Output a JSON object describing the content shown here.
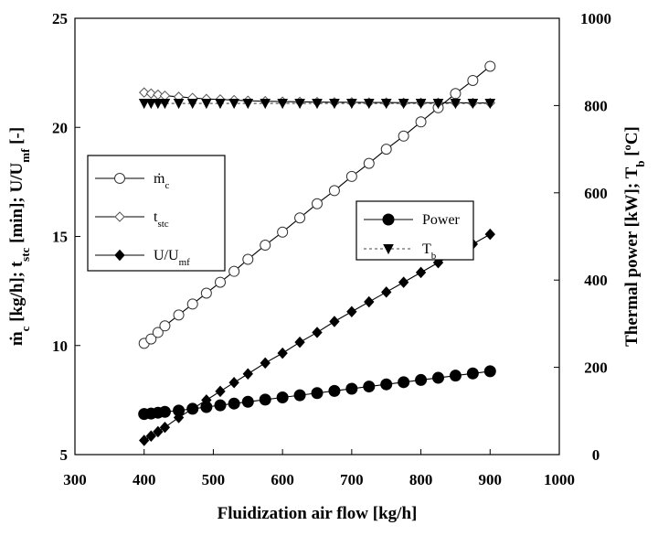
{
  "chart_data": {
    "type": "line",
    "x_axis": {
      "label": "Fluidization air flow  [kg/h]",
      "range": [
        300,
        1000
      ],
      "ticks": [
        300,
        400,
        500,
        600,
        700,
        800,
        900,
        1000
      ]
    },
    "y_left": {
      "label_parts": [
        "ṁ",
        "c",
        " [kg/h]; t",
        "stc",
        " [min];  U/U",
        "mf",
        " [-]"
      ],
      "range": [
        5,
        25
      ],
      "ticks": [
        5,
        10,
        15,
        20,
        25
      ]
    },
    "y_right": {
      "label_parts": [
        "Thermal power [kW]; T",
        "b",
        " [ºC]"
      ],
      "range": [
        0,
        1000
      ],
      "ticks": [
        0,
        200,
        400,
        600,
        800,
        1000
      ]
    },
    "grid": false,
    "legends": [
      {
        "placement": "left-middle",
        "entries": [
          {
            "series": "mc",
            "text": "ṁ",
            "sub": "c"
          },
          {
            "series": "tstc",
            "text": "t",
            "sub": "stc"
          },
          {
            "series": "uumf",
            "text": "U/U",
            "sub": "mf"
          }
        ]
      },
      {
        "placement": "right-middle",
        "entries": [
          {
            "series": "power",
            "text": "Power",
            "sub": ""
          },
          {
            "series": "tb",
            "text": "T",
            "sub": "b"
          }
        ]
      }
    ],
    "series": [
      {
        "id": "mc",
        "axis": "left",
        "marker": "open-circle",
        "line": "solid",
        "x": [
          400,
          410,
          420,
          430,
          450,
          470,
          490,
          510,
          530,
          550,
          575,
          600,
          625,
          650,
          675,
          700,
          725,
          750,
          775,
          800,
          825,
          850,
          875,
          900
        ],
        "values": [
          10.1,
          10.3,
          10.6,
          10.9,
          11.4,
          11.9,
          12.4,
          12.9,
          13.4,
          13.95,
          14.6,
          15.2,
          15.85,
          16.5,
          17.1,
          17.75,
          18.35,
          19.0,
          19.6,
          20.25,
          20.9,
          21.55,
          22.15,
          22.8
        ]
      },
      {
        "id": "tstc",
        "axis": "left",
        "marker": "open-diamond",
        "line": "solid",
        "x": [
          400,
          410,
          420,
          430,
          450,
          470,
          490,
          510,
          530,
          550,
          575,
          600,
          625,
          650,
          675,
          700,
          725,
          750,
          775,
          800,
          825,
          850,
          875,
          900
        ],
        "values": [
          21.6,
          21.55,
          21.5,
          21.45,
          21.4,
          21.35,
          21.3,
          21.28,
          21.25,
          21.22,
          21.2,
          21.18,
          21.17,
          21.16,
          21.15,
          21.15,
          21.14,
          21.14,
          21.13,
          21.13,
          21.13,
          21.13,
          21.12,
          21.12
        ]
      },
      {
        "id": "uumf",
        "axis": "left",
        "marker": "filled-diamond",
        "line": "solid",
        "x": [
          400,
          410,
          420,
          430,
          450,
          470,
          490,
          510,
          530,
          550,
          575,
          600,
          625,
          650,
          675,
          700,
          725,
          750,
          775,
          800,
          825,
          850,
          875,
          900
        ],
        "values": [
          5.65,
          5.85,
          6.05,
          6.25,
          6.7,
          7.1,
          7.5,
          7.9,
          8.3,
          8.7,
          9.2,
          9.65,
          10.15,
          10.6,
          11.1,
          11.55,
          12.0,
          12.45,
          12.9,
          13.35,
          13.8,
          14.25,
          14.65,
          15.1
        ]
      },
      {
        "id": "power",
        "axis": "right",
        "marker": "filled-circle",
        "line": "solid",
        "x": [
          400,
          410,
          420,
          430,
          450,
          470,
          490,
          510,
          530,
          550,
          575,
          600,
          625,
          650,
          675,
          700,
          725,
          750,
          775,
          800,
          825,
          850,
          875,
          900
        ],
        "values": [
          93,
          94,
          96,
          98,
          101,
          105,
          109,
          113,
          117,
          121,
          126,
          131,
          136,
          141,
          146,
          151,
          156,
          161,
          166,
          171,
          176,
          181,
          186,
          191
        ]
      },
      {
        "id": "tb",
        "axis": "right",
        "marker": "filled-triangle-down",
        "line": "dashed",
        "x": [
          400,
          410,
          420,
          430,
          450,
          470,
          490,
          510,
          530,
          550,
          575,
          600,
          625,
          650,
          675,
          700,
          725,
          750,
          775,
          800,
          825,
          850,
          875,
          900
        ],
        "values": [
          805,
          805,
          805,
          805,
          805,
          805,
          805,
          805,
          805,
          805,
          805,
          805,
          805,
          805,
          805,
          805,
          805,
          805,
          805,
          805,
          805,
          805,
          805,
          805
        ]
      }
    ]
  }
}
